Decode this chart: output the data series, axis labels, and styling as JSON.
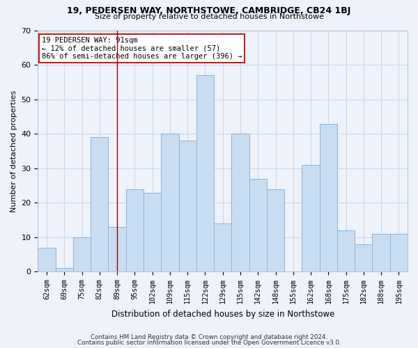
{
  "title1": "19, PEDERSEN WAY, NORTHSTOWE, CAMBRIDGE, CB24 1BJ",
  "title2": "Size of property relative to detached houses in Northstowe",
  "xlabel": "Distribution of detached houses by size in Northstowe",
  "ylabel": "Number of detached properties",
  "footer1": "Contains HM Land Registry data © Crown copyright and database right 2024.",
  "footer2": "Contains public sector information licensed under the Open Government Licence v3.0.",
  "categories": [
    "62sqm",
    "69sqm",
    "75sqm",
    "82sqm",
    "89sqm",
    "95sqm",
    "102sqm",
    "109sqm",
    "115sqm",
    "122sqm",
    "129sqm",
    "135sqm",
    "142sqm",
    "148sqm",
    "155sqm",
    "162sqm",
    "168sqm",
    "175sqm",
    "182sqm",
    "188sqm",
    "195sqm"
  ],
  "values": [
    7,
    1,
    10,
    39,
    13,
    24,
    23,
    40,
    38,
    57,
    14,
    40,
    27,
    24,
    0,
    31,
    43,
    12,
    8,
    11,
    11
  ],
  "bar_color": "#c9ddf2",
  "bar_edge_color": "#8ab4d8",
  "grid_color": "#ccd6e8",
  "background_color": "#eef2fa",
  "vline_index": 4,
  "vline_color": "#990000",
  "annotation_line1": "19 PEDERSEN WAY: 91sqm",
  "annotation_line2": "← 12% of detached houses are smaller (57)",
  "annotation_line3": "86% of semi-detached houses are larger (396) →",
  "annotation_box_color": "white",
  "annotation_box_edge": "#cc0000",
  "ylim": [
    0,
    70
  ],
  "yticks": [
    0,
    10,
    20,
    30,
    40,
    50,
    60,
    70
  ]
}
